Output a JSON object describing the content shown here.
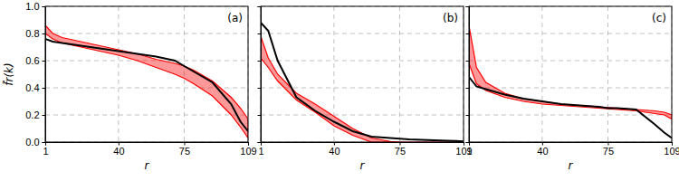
{
  "chart_data": [
    {
      "type": "line",
      "annotation": "(a)",
      "x_label": "r",
      "y_label": "f̃r(k)",
      "xlim": [
        1,
        109
      ],
      "ylim": [
        0,
        1
      ],
      "xticks": [
        1,
        40,
        75,
        109
      ],
      "yticks": [
        {
          "value": 0,
          "label": "0.0"
        },
        {
          "value": 0.2,
          "label": "0.2"
        },
        {
          "value": 0.4,
          "label": "0.4"
        },
        {
          "value": 0.6,
          "label": "0.6"
        },
        {
          "value": 0.8,
          "label": "0.8"
        },
        {
          "value": 1,
          "label": "1.0"
        }
      ],
      "grid": true,
      "tick_labels": true,
      "x": [
        1,
        5,
        10,
        20,
        30,
        40,
        50,
        60,
        70,
        75,
        80,
        90,
        100,
        105,
        109
      ],
      "series": [
        {
          "type": "area",
          "color": "#ff0000",
          "upper": [
            0.86,
            0.8,
            0.77,
            0.74,
            0.71,
            0.68,
            0.65,
            0.61,
            0.58,
            0.56,
            0.53,
            0.45,
            0.33,
            0.25,
            0.17
          ],
          "lower": [
            0.8,
            0.76,
            0.73,
            0.7,
            0.67,
            0.64,
            0.6,
            0.55,
            0.5,
            0.47,
            0.43,
            0.34,
            0.2,
            0.11,
            0.03
          ]
        },
        {
          "type": "line",
          "color": "#000000",
          "values": [
            0.76,
            0.74,
            0.73,
            0.71,
            0.69,
            0.67,
            0.65,
            0.63,
            0.6,
            0.56,
            0.52,
            0.44,
            0.28,
            0.15,
            0.08
          ]
        }
      ]
    },
    {
      "type": "line",
      "annotation": "(b)",
      "x_label": "r",
      "xlim": [
        1,
        109
      ],
      "ylim": [
        0,
        1
      ],
      "xticks": [
        1,
        40,
        75,
        109
      ],
      "yticks": [
        0,
        0.2,
        0.4,
        0.6,
        0.8,
        1
      ],
      "grid": true,
      "tick_labels": "x",
      "x": [
        1,
        5,
        10,
        20,
        30,
        40,
        50,
        60,
        70,
        75,
        80,
        90,
        100,
        105,
        109
      ],
      "series": [
        {
          "type": "area",
          "color": "#ff0000",
          "upper": [
            0.78,
            0.62,
            0.5,
            0.36,
            0.28,
            0.19,
            0.1,
            0.03,
            0.005,
            0,
            0,
            0,
            0,
            0,
            0
          ],
          "lower": [
            0.62,
            0.55,
            0.45,
            0.31,
            0.22,
            0.12,
            0.05,
            0,
            0,
            0,
            0,
            0,
            0,
            0,
            0
          ]
        },
        {
          "type": "line",
          "color": "#000000",
          "values": [
            0.88,
            0.82,
            0.6,
            0.33,
            0.23,
            0.15,
            0.08,
            0.04,
            0.03,
            0.025,
            0.02,
            0.015,
            0.01,
            0.008,
            0.005
          ]
        }
      ]
    },
    {
      "type": "line",
      "annotation": "(c)",
      "x_label": "r",
      "xlim": [
        1,
        109
      ],
      "ylim": [
        0,
        1
      ],
      "xticks": [
        1,
        40,
        75,
        109
      ],
      "yticks": [
        0,
        0.2,
        0.4,
        0.6,
        0.8,
        1
      ],
      "grid": true,
      "tick_labels": "x",
      "x": [
        1,
        5,
        10,
        20,
        30,
        40,
        50,
        60,
        70,
        75,
        80,
        90,
        100,
        105,
        109
      ],
      "series": [
        {
          "type": "area",
          "color": "#ff0000",
          "upper": [
            0.86,
            0.55,
            0.44,
            0.36,
            0.32,
            0.3,
            0.28,
            0.27,
            0.26,
            0.255,
            0.25,
            0.24,
            0.23,
            0.22,
            0.2
          ],
          "lower": [
            0.58,
            0.43,
            0.38,
            0.33,
            0.3,
            0.28,
            0.27,
            0.26,
            0.25,
            0.245,
            0.24,
            0.23,
            0.21,
            0.2,
            0.17
          ]
        },
        {
          "type": "line",
          "color": "#000000",
          "values": [
            0.48,
            0.41,
            0.39,
            0.35,
            0.32,
            0.3,
            0.28,
            0.27,
            0.26,
            0.25,
            0.25,
            0.24,
            0.13,
            0.07,
            0.03
          ]
        }
      ]
    }
  ]
}
